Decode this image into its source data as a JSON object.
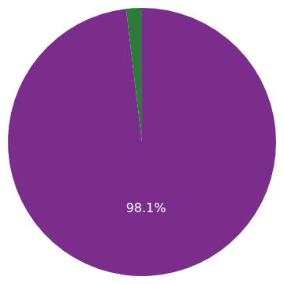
{
  "chart_data": {
    "type": "pie",
    "values": [
      98.1,
      1.9
    ],
    "colors": [
      "#7B2D8B",
      "#2D7A3A"
    ],
    "data_labels": true,
    "value_labels": [
      "98.1%",
      null
    ]
  }
}
